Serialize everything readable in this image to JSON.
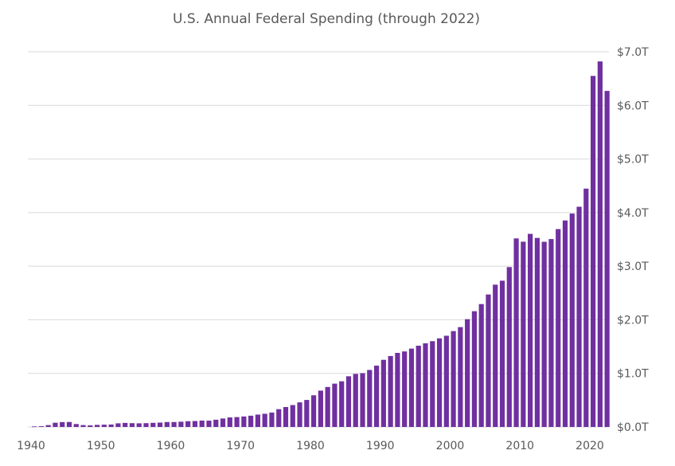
{
  "chart_data": {
    "type": "bar",
    "title": "U.S. Annual Federal Spending (through 2022)",
    "xlabel": "",
    "ylabel": "",
    "unit": "trillion USD",
    "ylim": [
      0,
      7
    ],
    "y_axis_side": "right",
    "grid": true,
    "bar_color": "#7030A0",
    "x_ticks": [
      "1940",
      "1950",
      "1960",
      "1970",
      "1980",
      "1990",
      "2000",
      "2010",
      "2020"
    ],
    "y_ticks": [
      "$0.0T",
      "$1.0T",
      "$2.0T",
      "$3.0T",
      "$4.0T",
      "$5.0T",
      "$6.0T",
      "$7.0T"
    ],
    "categories": [
      1940,
      1941,
      1942,
      1943,
      1944,
      1945,
      1946,
      1947,
      1948,
      1949,
      1950,
      1951,
      1952,
      1953,
      1954,
      1955,
      1956,
      1957,
      1958,
      1959,
      1960,
      1961,
      1962,
      1963,
      1964,
      1965,
      1966,
      1967,
      1968,
      1969,
      1970,
      1971,
      1972,
      1973,
      1974,
      1975,
      1976,
      1977,
      1978,
      1979,
      1980,
      1981,
      1982,
      1983,
      1984,
      1985,
      1986,
      1987,
      1988,
      1989,
      1990,
      1991,
      1992,
      1993,
      1994,
      1995,
      1996,
      1997,
      1998,
      1999,
      2000,
      2001,
      2002,
      2003,
      2004,
      2005,
      2006,
      2007,
      2008,
      2009,
      2010,
      2011,
      2012,
      2013,
      2014,
      2015,
      2016,
      2017,
      2018,
      2019,
      2020,
      2021,
      2022
    ],
    "values": [
      0.01,
      0.014,
      0.035,
      0.079,
      0.091,
      0.093,
      0.055,
      0.035,
      0.03,
      0.039,
      0.043,
      0.046,
      0.068,
      0.076,
      0.071,
      0.068,
      0.071,
      0.077,
      0.082,
      0.092,
      0.092,
      0.098,
      0.107,
      0.111,
      0.119,
      0.118,
      0.135,
      0.158,
      0.178,
      0.184,
      0.196,
      0.21,
      0.231,
      0.246,
      0.269,
      0.332,
      0.372,
      0.409,
      0.459,
      0.504,
      0.591,
      0.678,
      0.746,
      0.808,
      0.852,
      0.946,
      0.99,
      1.004,
      1.064,
      1.144,
      1.253,
      1.324,
      1.382,
      1.409,
      1.462,
      1.516,
      1.561,
      1.601,
      1.653,
      1.702,
      1.789,
      1.863,
      2.011,
      2.16,
      2.293,
      2.472,
      2.655,
      2.729,
      2.983,
      3.518,
      3.457,
      3.603,
      3.527,
      3.455,
      3.506,
      3.692,
      3.853,
      3.982,
      4.109,
      4.447,
      6.55,
      6.82,
      6.27
    ]
  }
}
